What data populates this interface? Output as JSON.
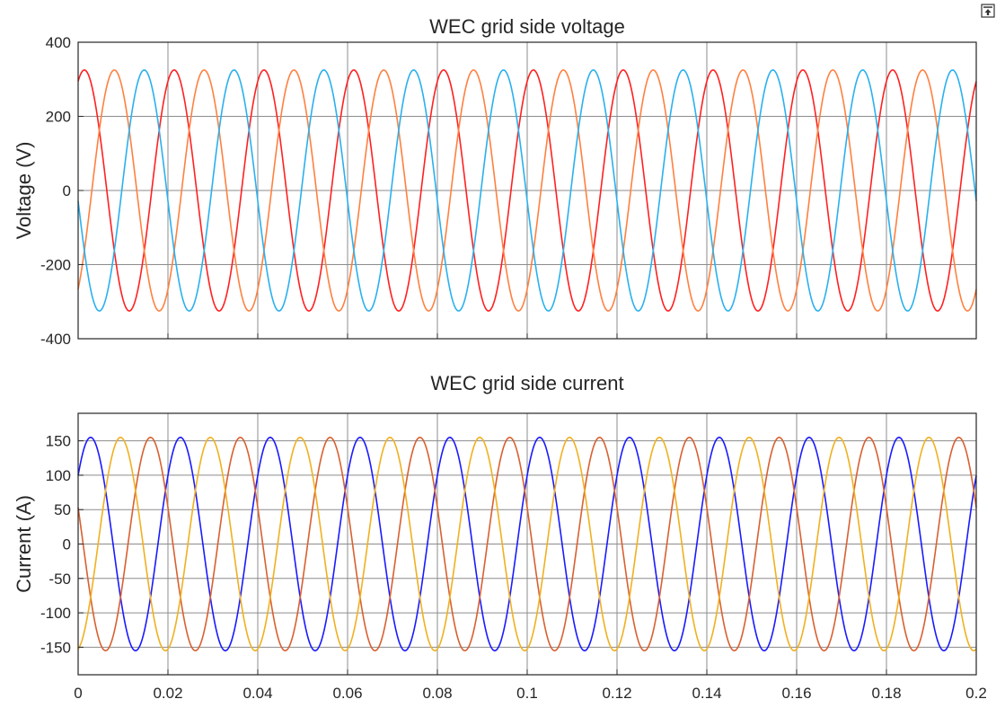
{
  "icons": {
    "undock": "undock-icon"
  },
  "chart_data": [
    {
      "type": "line",
      "title": "WEC grid side voltage",
      "xlabel": "",
      "ylabel": "Voltage (V)",
      "xlim": [
        0,
        0.2
      ],
      "ylim": [
        -400,
        400
      ],
      "yticks": [
        400,
        200,
        0,
        -200,
        -400
      ],
      "yticklabels": [
        "400",
        "200",
        "0",
        "-200",
        "-400"
      ],
      "xticks": [
        0,
        0.02,
        0.04,
        0.06,
        0.08,
        0.1,
        0.12,
        0.14,
        0.16,
        0.18,
        0.2
      ],
      "xticklabels": [],
      "grid": true,
      "frequency_hz": 50,
      "series": [
        {
          "color": "#ff2020",
          "amplitude": 325,
          "phase_deg": 65,
          "x_range": [
            0,
            0.2
          ]
        },
        {
          "color": "#ff8040",
          "amplitude": 325,
          "phase_deg": -55,
          "x_range": [
            0,
            0.2
          ]
        },
        {
          "color": "#2ab0ee",
          "amplitude": 325,
          "phase_deg": -175,
          "x_range": [
            0,
            0.2
          ]
        }
      ]
    },
    {
      "type": "line",
      "title": "WEC grid side current",
      "xlabel": "",
      "ylabel": "Current (A)",
      "xlim": [
        0,
        0.2
      ],
      "ylim": [
        -190,
        190
      ],
      "yticks": [
        150,
        100,
        50,
        0,
        -50,
        -100,
        -150
      ],
      "yticklabels": [
        "150",
        "100",
        "50",
        "0",
        "-50",
        "-100",
        "-150"
      ],
      "xticks": [
        0,
        0.02,
        0.04,
        0.06,
        0.08,
        0.1,
        0.12,
        0.14,
        0.16,
        0.18,
        0.2
      ],
      "xticklabels": [
        "0",
        "0.02",
        "0.04",
        "0.06",
        "0.08",
        "0.1",
        "0.12",
        "0.14",
        "0.16",
        "0.18",
        "0.2"
      ],
      "grid": true,
      "frequency_hz": 50,
      "series": [
        {
          "color": "#1a1aff",
          "amplitude": 155,
          "phase_deg": 40,
          "x_range": [
            0,
            0.2
          ]
        },
        {
          "color": "#d86030",
          "amplitude": 155,
          "phase_deg": 160,
          "x_range": [
            0,
            0.2
          ]
        },
        {
          "color": "#f0b020",
          "amplitude": 155,
          "phase_deg": -80,
          "x_range": [
            0,
            0.2
          ]
        }
      ]
    }
  ]
}
